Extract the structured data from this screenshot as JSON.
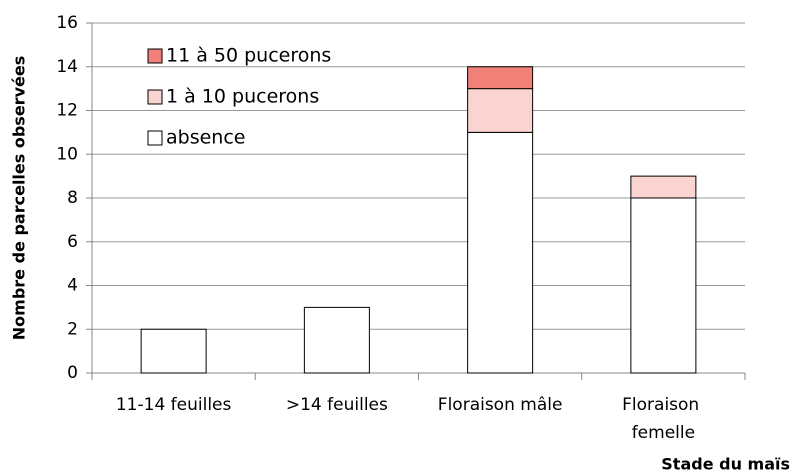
{
  "chart_data": {
    "type": "stacked_bar",
    "y_label": "Nombre de parcelles observées",
    "x_label": "Stade du maïs",
    "categories": [
      "11-14 feuilles",
      ">14 feuilles",
      "Floraison mâle",
      "Floraison femelle"
    ],
    "series": [
      {
        "name": "absence",
        "color": "#ffffff",
        "values": [
          2,
          3,
          11,
          8
        ]
      },
      {
        "name": "1 à 10 pucerons",
        "color": "#fad4d0",
        "values": [
          0,
          0,
          2,
          1
        ]
      },
      {
        "name": "11 à 50 pucerons",
        "color": "#f08078",
        "values": [
          0,
          0,
          1,
          0
        ]
      }
    ],
    "ylim": [
      0,
      16
    ],
    "yticks": [
      0,
      2,
      4,
      6,
      8,
      10,
      12,
      14,
      16
    ],
    "grid": true,
    "legend": "top-left"
  }
}
